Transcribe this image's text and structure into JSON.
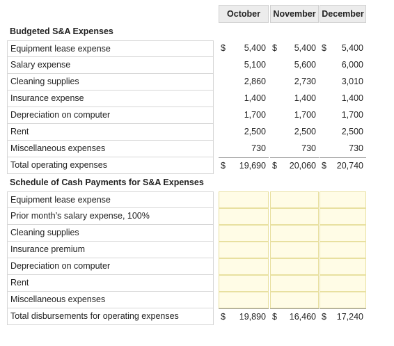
{
  "columns": [
    "October",
    "November",
    "December"
  ],
  "budget_section": {
    "title": "Budgeted S&A Expenses",
    "rows": [
      {
        "label": "Equipment lease expense",
        "values": [
          "5,400",
          "5,400",
          "5,400"
        ],
        "dollar": true
      },
      {
        "label": "Salary expense",
        "values": [
          "5,100",
          "5,600",
          "6,000"
        ]
      },
      {
        "label": "Cleaning supplies",
        "values": [
          "2,860",
          "2,730",
          "3,010"
        ]
      },
      {
        "label": "Insurance expense",
        "values": [
          "1,400",
          "1,400",
          "1,400"
        ]
      },
      {
        "label": "Depreciation on computer",
        "values": [
          "1,700",
          "1,700",
          "1,700"
        ]
      },
      {
        "label": "Rent",
        "values": [
          "2,500",
          "2,500",
          "2,500"
        ]
      },
      {
        "label": "Miscellaneous expenses",
        "values": [
          "730",
          "730",
          "730"
        ]
      }
    ],
    "total": {
      "label": "Total operating expenses",
      "values": [
        "19,690",
        "20,060",
        "20,740"
      ],
      "dollar": true
    }
  },
  "cash_section": {
    "title": "Schedule of Cash Payments for S&A Expenses",
    "rows": [
      {
        "label": "Equipment lease expense",
        "values": [
          "",
          "",
          ""
        ]
      },
      {
        "label": "Prior month’s salary expense, 100%",
        "values": [
          "",
          "",
          ""
        ]
      },
      {
        "label": "Cleaning supplies",
        "values": [
          "",
          "",
          ""
        ]
      },
      {
        "label": "Insurance premium",
        "values": [
          "",
          "",
          ""
        ]
      },
      {
        "label": "Depreciation on computer",
        "values": [
          "",
          "",
          ""
        ]
      },
      {
        "label": "Rent",
        "values": [
          "",
          "",
          ""
        ]
      },
      {
        "label": "Miscellaneous expenses",
        "values": [
          "",
          "",
          ""
        ]
      }
    ],
    "total": {
      "label": "Total disbursements for operating expenses",
      "values": [
        "19,890",
        "16,460",
        "17,240"
      ],
      "dollar": true
    }
  },
  "currency_symbol": "$",
  "colors": {
    "input_fill": "#fffce6",
    "header_fill": "#ececec"
  }
}
